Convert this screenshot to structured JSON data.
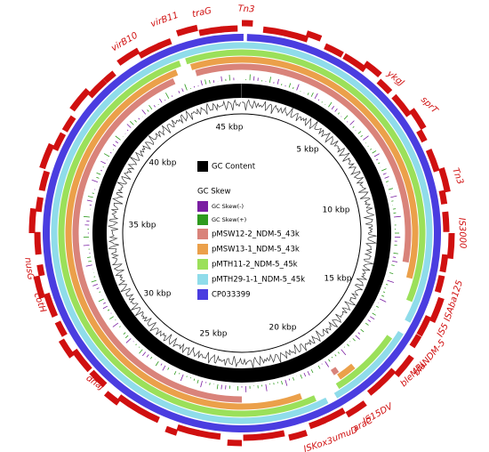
{
  "kbp_labels": [
    "5 kbp",
    "10 kbp",
    "15 kbp",
    "20 kbp",
    "25 kbp",
    "30 kbp",
    "35 kbp",
    "40 kbp",
    "45 kbp"
  ],
  "legend": [
    {
      "label": "GC Content",
      "color": "#000000"
    },
    {
      "label": "GC Skew"
    },
    {
      "label": "GC Skew(-)",
      "color": "#7a1fa2"
    },
    {
      "label": "GC Skew(+)",
      "color": "#2e9a1e"
    },
    {
      "label": "pMSW12-2_NDM-5_43k",
      "color": "#d9837a"
    },
    {
      "label": "pMSW13-1_NDM-5_43k",
      "color": "#eba04a"
    },
    {
      "label": "pMTH11-2_NDM-5_45k",
      "color": "#9be05a"
    },
    {
      "label": "pMTH29-1-1_NDM-5_45k",
      "color": "#8fdcea"
    },
    {
      "label": "CP033399",
      "color": "#4a3de0"
    }
  ],
  "gene_color": "#d01010",
  "genes": [
    "traG",
    "Tn3",
    "virB11",
    "virB10",
    "ykgJ",
    "sprT",
    "Tn3",
    "IS3000",
    "ISAba125",
    "IS5",
    "blaNDM-5",
    "bleMBL",
    "IS15DV",
    "araC",
    "umuD",
    "ISKox3",
    "dnaJ",
    "cotH",
    "nusG"
  ]
}
